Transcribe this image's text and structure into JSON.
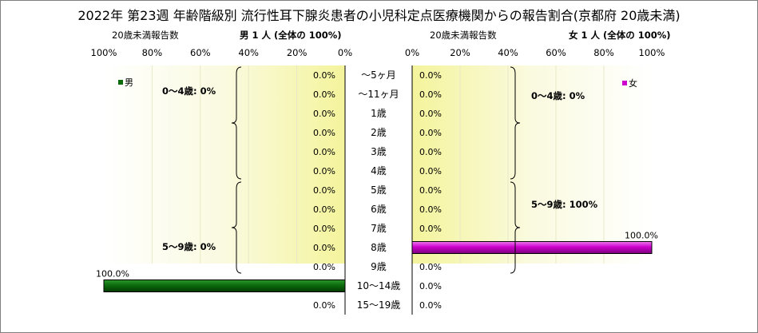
{
  "title": "2022年 第23週 年齢階級別 流行性耳下腺炎患者の小児科定点医療機関からの報告割合(京都府 20歳未満)",
  "left": {
    "subtitle_left": "20歳未満報告数",
    "subtitle_right": "男  1 人  (全体の  100%)"
  },
  "right": {
    "subtitle_left": "20歳未満報告数",
    "subtitle_right": "女  1 人  (全体の  100%)"
  },
  "annotations": {
    "male_0_4": "0～4歳: 0%",
    "male_5_9": "5～9歳: 0%",
    "female_0_4": "0～4歳: 0%",
    "female_5_9": "5～9歳: 100%"
  },
  "chart_data": [
    {
      "type": "bar",
      "orientation": "horizontal-reversed",
      "categories": [
        "～5ヶ月",
        "～11ヶ月",
        "1歳",
        "2歳",
        "3歳",
        "4歳",
        "5歳",
        "6歳",
        "7歳",
        "8歳",
        "9歳",
        "10～14歳",
        "15～19歳"
      ],
      "series": [
        {
          "name": "男",
          "values": [
            0,
            0,
            0,
            0,
            0,
            0,
            0,
            0,
            0,
            0,
            0,
            100,
            0
          ]
        }
      ],
      "labels": [
        "0.0%",
        "0.0%",
        "0.0%",
        "0.0%",
        "0.0%",
        "0.0%",
        "0.0%",
        "0.0%",
        "0.0%",
        "0.0%",
        "0.0%",
        "100.0%",
        "0.0%"
      ],
      "xlim": [
        0,
        100
      ],
      "xticks": [
        "100%",
        "80%",
        "60%",
        "40%",
        "20%",
        "0%"
      ],
      "color": "#0b6b0b",
      "legend": "top-left"
    },
    {
      "type": "bar",
      "orientation": "horizontal",
      "categories": [
        "～5ヶ月",
        "～11ヶ月",
        "1歳",
        "2歳",
        "3歳",
        "4歳",
        "5歳",
        "6歳",
        "7歳",
        "8歳",
        "9歳",
        "10～14歳",
        "15～19歳"
      ],
      "series": [
        {
          "name": "女",
          "values": [
            0,
            0,
            0,
            0,
            0,
            0,
            0,
            0,
            0,
            100,
            0,
            0,
            0
          ]
        }
      ],
      "labels": [
        "0.0%",
        "0.0%",
        "0.0%",
        "0.0%",
        "0.0%",
        "0.0%",
        "0.0%",
        "0.0%",
        "0.0%",
        "100.0%",
        "0.0%",
        "0.0%",
        "0.0%"
      ],
      "xlim": [
        0,
        100
      ],
      "xticks": [
        "0%",
        "20%",
        "40%",
        "60%",
        "80%",
        "100%"
      ],
      "color": "#cc00cc",
      "legend": "top-right"
    }
  ]
}
